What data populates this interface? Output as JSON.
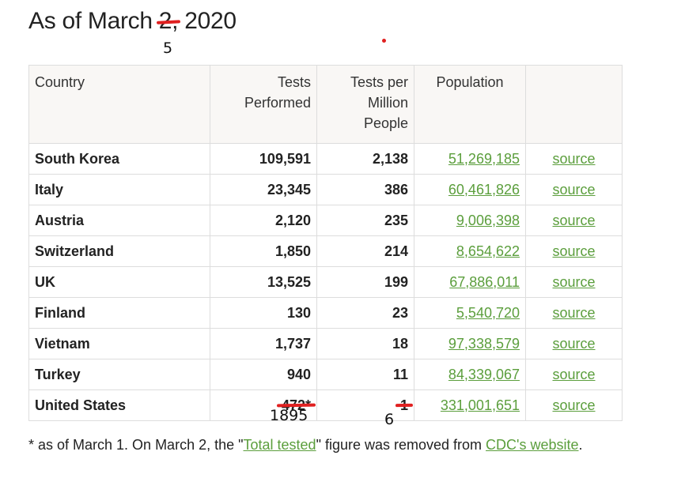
{
  "title": {
    "prefix": "As of March ",
    "struck": "2,",
    "suffix": " 2020",
    "handwritten_correction": "5"
  },
  "table": {
    "headers": [
      "Country",
      "Tests Performed",
      "Tests per Million People",
      "Population",
      ""
    ],
    "rows": [
      {
        "country": "South Korea",
        "tests": "109,591",
        "per_million": "2,138",
        "population": "51,269,185",
        "source": "source"
      },
      {
        "country": "Italy",
        "tests": "23,345",
        "per_million": "386",
        "population": "60,461,826",
        "source": "source"
      },
      {
        "country": "Austria",
        "tests": "2,120",
        "per_million": "235",
        "population": "9,006,398",
        "source": "source"
      },
      {
        "country": "Switzerland",
        "tests": "1,850",
        "per_million": "214",
        "population": "8,654,622",
        "source": "source"
      },
      {
        "country": "UK",
        "tests": "13,525",
        "per_million": "199",
        "population": "67,886,011",
        "source": "source"
      },
      {
        "country": "Finland",
        "tests": "130",
        "per_million": "23",
        "population": "5,540,720",
        "source": "source"
      },
      {
        "country": "Vietnam",
        "tests": "1,737",
        "per_million": "18",
        "population": "97,338,579",
        "source": "source"
      },
      {
        "country": "Turkey",
        "tests": "940",
        "per_million": "11",
        "population": "84,339,067",
        "source": "source"
      },
      {
        "country": "United States",
        "tests": "472*",
        "per_million": "1",
        "population": "331,001,651",
        "source": "source"
      }
    ],
    "us_corrections": {
      "tests": "1895",
      "per_million": "6"
    }
  },
  "footnote": {
    "part1": "* as of March 1. On March 2, the \"",
    "link1": "Total tested",
    "part2": "\" figure was removed from ",
    "link2": "CDC's website",
    "part3": "."
  },
  "colors": {
    "link": "#5b9e3c",
    "annotation_red": "#e02020",
    "header_bg": "#f9f7f5"
  }
}
